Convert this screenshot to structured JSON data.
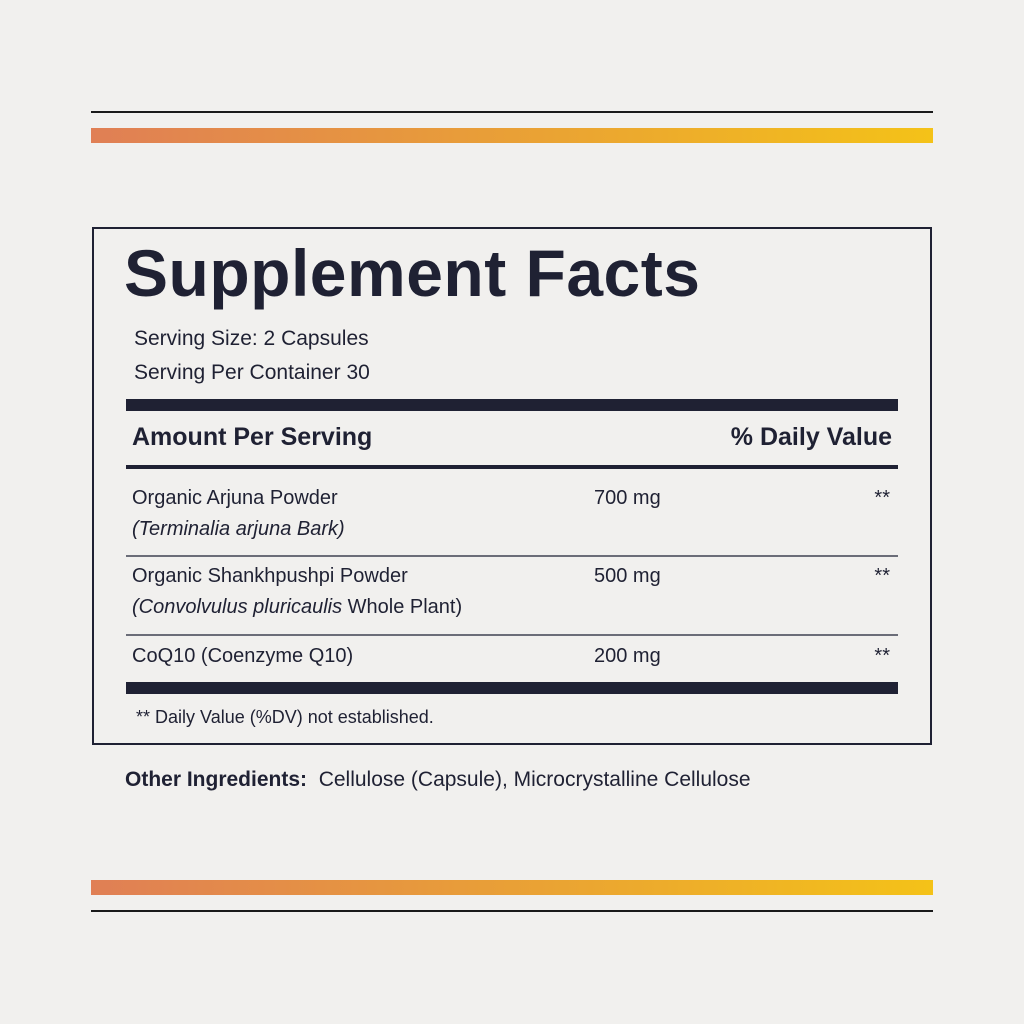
{
  "colors": {
    "gradient_start": "#e07f55",
    "gradient_end": "#f4c218",
    "ink": "#1f2133"
  },
  "label": {
    "title": "Supplement Facts",
    "serving_size": "Serving Size: 2 Capsules",
    "servings_per_container": "Serving Per Container 30",
    "header_amount": "Amount Per Serving",
    "header_dv": "% Daily Value",
    "ingredients": [
      {
        "name": "Organic Arjuna Powder",
        "source_italic": "(Terminalia arjuna Bark)",
        "source_plain": "",
        "amount": "700 mg",
        "dv": "**"
      },
      {
        "name": "Organic Shankhpushpi Powder",
        "source_italic": "(Convolvulus pluricaulis",
        "source_plain": " Whole Plant)",
        "amount": "500 mg",
        "dv": "**"
      },
      {
        "name": "CoQ10 (Coenzyme Q10)",
        "amount": "200 mg",
        "dv": "**"
      }
    ],
    "footnote": "**  Daily Value (%DV) not established."
  },
  "other_ingredients": {
    "label": "Other Ingredients:",
    "value": "Cellulose (Capsule), Microcrystalline Cellulose"
  }
}
